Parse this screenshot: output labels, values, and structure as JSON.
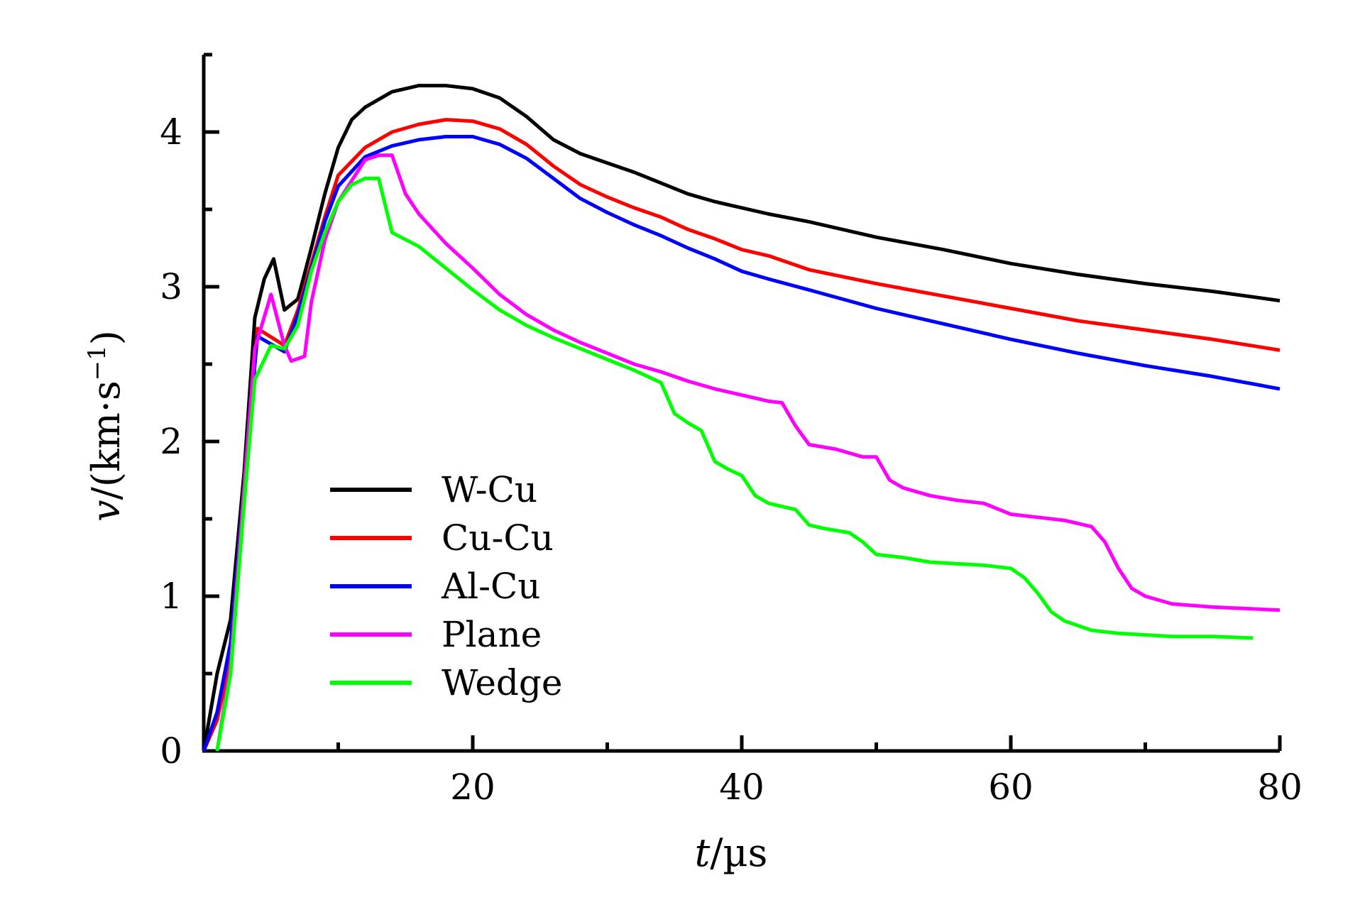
{
  "chart_data": {
    "type": "line",
    "title": "",
    "xlabel": {
      "var": "t",
      "unit": "/µs"
    },
    "ylabel": {
      "var": "v",
      "unit": "/(km·s",
      "exp": "−1",
      "close": ")"
    },
    "xlim": [
      0,
      80
    ],
    "ylim": [
      0,
      4.5
    ],
    "x_ticks": [
      20,
      40,
      60,
      80
    ],
    "y_ticks": [
      0,
      1,
      2,
      3,
      4
    ],
    "grid": false,
    "legend_position": "lower-left",
    "series": [
      {
        "name": "W-Cu",
        "color": "#000000",
        "points": [
          [
            0,
            0
          ],
          [
            1,
            0.5
          ],
          [
            2,
            0.85
          ],
          [
            3,
            1.8
          ],
          [
            3.8,
            2.8
          ],
          [
            4.5,
            3.05
          ],
          [
            5.2,
            3.18
          ],
          [
            6,
            2.85
          ],
          [
            7,
            2.92
          ],
          [
            8,
            3.25
          ],
          [
            9,
            3.6
          ],
          [
            10,
            3.9
          ],
          [
            11,
            4.08
          ],
          [
            12,
            4.16
          ],
          [
            14,
            4.26
          ],
          [
            16,
            4.3
          ],
          [
            18,
            4.3
          ],
          [
            20,
            4.28
          ],
          [
            22,
            4.22
          ],
          [
            24,
            4.1
          ],
          [
            26,
            3.95
          ],
          [
            28,
            3.86
          ],
          [
            30,
            3.8
          ],
          [
            32,
            3.74
          ],
          [
            34,
            3.67
          ],
          [
            36,
            3.6
          ],
          [
            38,
            3.55
          ],
          [
            40,
            3.51
          ],
          [
            42,
            3.47
          ],
          [
            45,
            3.42
          ],
          [
            50,
            3.32
          ],
          [
            55,
            3.24
          ],
          [
            60,
            3.15
          ],
          [
            65,
            3.08
          ],
          [
            70,
            3.02
          ],
          [
            75,
            2.97
          ],
          [
            80,
            2.91
          ]
        ]
      },
      {
        "name": "Cu-Cu",
        "color": "#ff0000",
        "points": [
          [
            0,
            0
          ],
          [
            1,
            0.2
          ],
          [
            2,
            0.6
          ],
          [
            3,
            1.6
          ],
          [
            3.8,
            2.5
          ],
          [
            4,
            2.73
          ],
          [
            6,
            2.62
          ],
          [
            7,
            2.85
          ],
          [
            8,
            3.15
          ],
          [
            9,
            3.45
          ],
          [
            10,
            3.72
          ],
          [
            12,
            3.9
          ],
          [
            14,
            4.0
          ],
          [
            16,
            4.05
          ],
          [
            18,
            4.08
          ],
          [
            20,
            4.07
          ],
          [
            22,
            4.02
          ],
          [
            24,
            3.92
          ],
          [
            26,
            3.78
          ],
          [
            28,
            3.66
          ],
          [
            30,
            3.58
          ],
          [
            32,
            3.51
          ],
          [
            34,
            3.45
          ],
          [
            36,
            3.37
          ],
          [
            38,
            3.31
          ],
          [
            40,
            3.24
          ],
          [
            42,
            3.2
          ],
          [
            45,
            3.11
          ],
          [
            50,
            3.02
          ],
          [
            55,
            2.94
          ],
          [
            60,
            2.86
          ],
          [
            65,
            2.78
          ],
          [
            70,
            2.72
          ],
          [
            75,
            2.66
          ],
          [
            80,
            2.59
          ]
        ]
      },
      {
        "name": "Al-Cu",
        "color": "#0000ff",
        "points": [
          [
            0,
            0
          ],
          [
            1,
            0.25
          ],
          [
            2,
            0.7
          ],
          [
            3,
            1.7
          ],
          [
            3.8,
            2.5
          ],
          [
            4,
            2.68
          ],
          [
            6,
            2.58
          ],
          [
            7,
            2.82
          ],
          [
            8,
            3.12
          ],
          [
            9,
            3.42
          ],
          [
            10,
            3.65
          ],
          [
            12,
            3.84
          ],
          [
            14,
            3.91
          ],
          [
            16,
            3.95
          ],
          [
            18,
            3.97
          ],
          [
            20,
            3.97
          ],
          [
            22,
            3.92
          ],
          [
            24,
            3.83
          ],
          [
            26,
            3.7
          ],
          [
            28,
            3.57
          ],
          [
            30,
            3.48
          ],
          [
            32,
            3.4
          ],
          [
            34,
            3.33
          ],
          [
            36,
            3.25
          ],
          [
            38,
            3.18
          ],
          [
            40,
            3.1
          ],
          [
            42,
            3.05
          ],
          [
            45,
            2.98
          ],
          [
            50,
            2.86
          ],
          [
            55,
            2.76
          ],
          [
            60,
            2.66
          ],
          [
            65,
            2.57
          ],
          [
            70,
            2.49
          ],
          [
            75,
            2.42
          ],
          [
            80,
            2.34
          ]
        ]
      },
      {
        "name": "Plane",
        "color": "#ff00ff",
        "points": [
          [
            1,
            0
          ],
          [
            2,
            0.55
          ],
          [
            3,
            1.7
          ],
          [
            3.8,
            2.6
          ],
          [
            5,
            2.95
          ],
          [
            6,
            2.62
          ],
          [
            6.5,
            2.52
          ],
          [
            7.5,
            2.55
          ],
          [
            8,
            2.9
          ],
          [
            9,
            3.3
          ],
          [
            10,
            3.55
          ],
          [
            12,
            3.82
          ],
          [
            13,
            3.85
          ],
          [
            14,
            3.85
          ],
          [
            15,
            3.6
          ],
          [
            16,
            3.47
          ],
          [
            18,
            3.28
          ],
          [
            20,
            3.12
          ],
          [
            22,
            2.95
          ],
          [
            24,
            2.82
          ],
          [
            26,
            2.72
          ],
          [
            28,
            2.64
          ],
          [
            30,
            2.57
          ],
          [
            32,
            2.5
          ],
          [
            34,
            2.45
          ],
          [
            36,
            2.39
          ],
          [
            38,
            2.34
          ],
          [
            40,
            2.3
          ],
          [
            42,
            2.26
          ],
          [
            43,
            2.25
          ],
          [
            44,
            2.1
          ],
          [
            45,
            1.98
          ],
          [
            47,
            1.95
          ],
          [
            49,
            1.9
          ],
          [
            50,
            1.9
          ],
          [
            51,
            1.75
          ],
          [
            52,
            1.7
          ],
          [
            54,
            1.65
          ],
          [
            56,
            1.62
          ],
          [
            58,
            1.6
          ],
          [
            60,
            1.53
          ],
          [
            62,
            1.51
          ],
          [
            64,
            1.49
          ],
          [
            66,
            1.45
          ],
          [
            67,
            1.35
          ],
          [
            68,
            1.18
          ],
          [
            69,
            1.05
          ],
          [
            70,
            1.0
          ],
          [
            72,
            0.95
          ],
          [
            75,
            0.93
          ],
          [
            80,
            0.91
          ]
        ]
      },
      {
        "name": "Wedge",
        "color": "#00ff00",
        "points": [
          [
            1,
            0
          ],
          [
            2,
            0.5
          ],
          [
            3,
            1.6
          ],
          [
            3.8,
            2.4
          ],
          [
            5,
            2.62
          ],
          [
            6,
            2.6
          ],
          [
            7,
            2.75
          ],
          [
            8,
            3.1
          ],
          [
            9,
            3.35
          ],
          [
            10,
            3.55
          ],
          [
            11,
            3.66
          ],
          [
            12,
            3.7
          ],
          [
            13,
            3.7
          ],
          [
            14,
            3.35
          ],
          [
            16,
            3.26
          ],
          [
            18,
            3.12
          ],
          [
            20,
            2.98
          ],
          [
            22,
            2.85
          ],
          [
            24,
            2.75
          ],
          [
            26,
            2.67
          ],
          [
            28,
            2.6
          ],
          [
            30,
            2.53
          ],
          [
            32,
            2.46
          ],
          [
            33,
            2.42
          ],
          [
            34,
            2.38
          ],
          [
            35,
            2.18
          ],
          [
            36,
            2.12
          ],
          [
            37,
            2.07
          ],
          [
            38,
            1.87
          ],
          [
            39,
            1.82
          ],
          [
            40,
            1.78
          ],
          [
            41,
            1.65
          ],
          [
            42,
            1.6
          ],
          [
            44,
            1.56
          ],
          [
            45,
            1.46
          ],
          [
            46,
            1.44
          ],
          [
            48,
            1.41
          ],
          [
            49,
            1.35
          ],
          [
            50,
            1.27
          ],
          [
            52,
            1.25
          ],
          [
            54,
            1.22
          ],
          [
            56,
            1.21
          ],
          [
            58,
            1.2
          ],
          [
            60,
            1.18
          ],
          [
            61,
            1.12
          ],
          [
            62,
            1.02
          ],
          [
            63,
            0.9
          ],
          [
            64,
            0.84
          ],
          [
            66,
            0.78
          ],
          [
            68,
            0.76
          ],
          [
            70,
            0.75
          ],
          [
            72,
            0.74
          ],
          [
            75,
            0.74
          ],
          [
            78,
            0.73
          ]
        ]
      }
    ]
  }
}
